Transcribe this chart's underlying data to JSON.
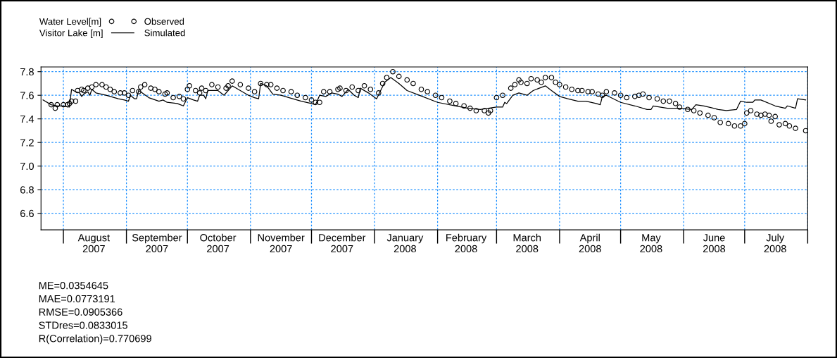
{
  "chart_data": {
    "type": "line",
    "legend_title": "Water Level[m]\nVisitor Lake [m]",
    "legend": "top left",
    "grid": true,
    "xlim": [
      "2007-07-21",
      "2008-08-01"
    ],
    "ylim": [
      6.46,
      7.84
    ],
    "yticks": [
      {
        "value": 6.6,
        "label": "6.6"
      },
      {
        "value": 6.8,
        "label": "6.8"
      },
      {
        "value": 7.0,
        "label": "7.0"
      },
      {
        "value": 7.2,
        "label": "7.2"
      },
      {
        "value": 7.4,
        "label": "7.4"
      },
      {
        "value": 7.6,
        "label": "7.6"
      },
      {
        "value": 7.8,
        "label": "7.8"
      }
    ],
    "xticks": [
      {
        "value": "2007-08-01",
        "label": null
      },
      {
        "value": "2007-08-16",
        "label": "August\n2007"
      },
      {
        "value": "2007-09-01",
        "label": null
      },
      {
        "value": "2007-09-16",
        "label": "September\n2007"
      },
      {
        "value": "2007-10-01",
        "label": null
      },
      {
        "value": "2007-10-16",
        "label": "October\n2007"
      },
      {
        "value": "2007-11-01",
        "label": null
      },
      {
        "value": "2007-11-16",
        "label": "November\n2007"
      },
      {
        "value": "2007-12-01",
        "label": null
      },
      {
        "value": "2007-12-16",
        "label": "December\n2007"
      },
      {
        "value": "2008-01-01",
        "label": null
      },
      {
        "value": "2008-01-16",
        "label": "January\n2008"
      },
      {
        "value": "2008-02-01",
        "label": null
      },
      {
        "value": "2008-02-15",
        "label": "February\n2008"
      },
      {
        "value": "2008-03-01",
        "label": null
      },
      {
        "value": "2008-03-16",
        "label": "March\n2008"
      },
      {
        "value": "2008-04-01",
        "label": null
      },
      {
        "value": "2008-04-16",
        "label": "April\n2008"
      },
      {
        "value": "2008-05-01",
        "label": null
      },
      {
        "value": "2008-05-16",
        "label": "May\n2008"
      },
      {
        "value": "2008-06-01",
        "label": null
      },
      {
        "value": "2008-06-16",
        "label": "June\n2008"
      },
      {
        "value": "2008-07-01",
        "label": null
      },
      {
        "value": "2008-07-16",
        "label": "July\n2008"
      },
      {
        "value": "2008-08-01",
        "label": null
      }
    ],
    "annotations": [
      "ME=0.0354645",
      "MAE=0.0773191",
      "RMSE=0.0905366",
      "STDres=0.0833015",
      "R(Correlation)=0.770699"
    ],
    "series": [
      {
        "name": "Observed",
        "type": "scatter",
        "marker": "circle",
        "color": "#000000",
        "x": [
          "2007-07-26",
          "2007-07-28",
          "2007-07-29",
          "2007-08-01",
          "2007-08-03",
          "2007-08-04",
          "2007-08-05",
          "2007-08-07",
          "2007-08-08",
          "2007-08-10",
          "2007-08-11",
          "2007-08-13",
          "2007-08-15",
          "2007-08-17",
          "2007-08-20",
          "2007-08-22",
          "2007-08-24",
          "2007-08-26",
          "2007-08-29",
          "2007-08-31",
          "2007-09-02",
          "2007-09-04",
          "2007-09-07",
          "2007-09-08",
          "2007-09-10",
          "2007-09-13",
          "2007-09-15",
          "2007-09-17",
          "2007-09-20",
          "2007-09-21",
          "2007-09-24",
          "2007-09-27",
          "2007-09-29",
          "2007-10-01",
          "2007-10-02",
          "2007-10-05",
          "2007-10-07",
          "2007-10-08",
          "2007-10-10",
          "2007-10-13",
          "2007-10-16",
          "2007-10-20",
          "2007-10-21",
          "2007-10-23",
          "2007-10-27",
          "2007-10-31",
          "2007-11-03",
          "2007-11-06",
          "2007-11-09",
          "2007-11-11",
          "2007-11-14",
          "2007-11-17",
          "2007-11-21",
          "2007-11-24",
          "2007-11-28",
          "2007-12-01",
          "2007-12-03",
          "2007-12-05",
          "2007-12-07",
          "2007-12-10",
          "2007-12-14",
          "2007-12-15",
          "2007-12-18",
          "2007-12-21",
          "2007-12-24",
          "2007-12-27",
          "2007-12-30",
          "2008-01-03",
          "2008-01-05",
          "2008-01-07",
          "2008-01-10",
          "2008-01-13",
          "2008-01-17",
          "2008-01-20",
          "2008-01-24",
          "2008-01-27",
          "2008-01-31",
          "2008-02-03",
          "2008-02-07",
          "2008-02-10",
          "2008-02-14",
          "2008-02-17",
          "2008-02-20",
          "2008-02-24",
          "2008-02-26",
          "2008-02-27",
          "2008-03-01",
          "2008-03-04",
          "2008-03-08",
          "2008-03-10",
          "2008-03-12",
          "2008-03-13",
          "2008-03-16",
          "2008-03-18",
          "2008-03-21",
          "2008-03-23",
          "2008-03-25",
          "2008-03-28",
          "2008-03-30",
          "2008-04-01",
          "2008-04-04",
          "2008-04-07",
          "2008-04-10",
          "2008-04-12",
          "2008-04-15",
          "2008-04-17",
          "2008-04-20",
          "2008-04-22",
          "2008-04-24",
          "2008-04-28",
          "2008-05-01",
          "2008-05-04",
          "2008-05-08",
          "2008-05-10",
          "2008-05-12",
          "2008-05-15",
          "2008-05-19",
          "2008-05-22",
          "2008-05-25",
          "2008-05-28",
          "2008-05-30",
          "2008-06-03",
          "2008-06-06",
          "2008-06-09",
          "2008-06-13",
          "2008-06-16",
          "2008-06-19",
          "2008-06-23",
          "2008-06-26",
          "2008-06-29",
          "2008-07-01",
          "2008-07-02",
          "2008-07-04",
          "2008-07-07",
          "2008-07-09",
          "2008-07-11",
          "2008-07-13",
          "2008-07-14",
          "2008-07-16",
          "2008-07-18",
          "2008-07-21",
          "2008-07-23",
          "2008-07-26",
          "2008-07-31"
        ],
        "values": [
          7.52,
          7.49,
          7.52,
          7.52,
          7.52,
          7.53,
          7.55,
          7.55,
          7.64,
          7.65,
          7.64,
          7.66,
          7.67,
          7.69,
          7.69,
          7.67,
          7.65,
          7.63,
          7.62,
          7.62,
          7.6,
          7.64,
          7.63,
          7.67,
          7.69,
          7.66,
          7.65,
          7.63,
          7.61,
          7.62,
          7.58,
          7.59,
          7.57,
          7.65,
          7.68,
          7.64,
          7.62,
          7.66,
          7.64,
          7.69,
          7.67,
          7.66,
          7.68,
          7.72,
          7.69,
          7.66,
          7.63,
          7.7,
          7.69,
          7.69,
          7.66,
          7.64,
          7.63,
          7.6,
          7.58,
          7.56,
          7.54,
          7.54,
          7.63,
          7.63,
          7.65,
          7.66,
          7.64,
          7.67,
          7.64,
          7.68,
          7.65,
          7.62,
          7.7,
          7.75,
          7.8,
          7.76,
          7.73,
          7.7,
          7.65,
          7.63,
          7.6,
          7.58,
          7.55,
          7.53,
          7.51,
          7.49,
          7.47,
          7.47,
          7.45,
          7.47,
          7.58,
          7.6,
          7.66,
          7.69,
          7.73,
          7.71,
          7.7,
          7.74,
          7.73,
          7.71,
          7.75,
          7.75,
          7.71,
          7.69,
          7.67,
          7.65,
          7.64,
          7.64,
          7.63,
          7.63,
          7.61,
          7.6,
          7.63,
          7.62,
          7.6,
          7.58,
          7.59,
          7.6,
          7.61,
          7.58,
          7.57,
          7.55,
          7.55,
          7.53,
          7.5,
          7.48,
          7.47,
          7.45,
          7.43,
          7.41,
          7.37,
          7.36,
          7.34,
          7.34,
          7.36,
          7.45,
          7.47,
          7.44,
          7.43,
          7.44,
          7.43,
          7.38,
          7.42,
          7.35,
          7.36,
          7.34,
          7.32,
          7.3
        ]
      },
      {
        "name": "Simulated",
        "marker": "none",
        "line_style": "solid",
        "color": "#000000",
        "x": [
          "2007-07-22",
          "2007-07-26",
          "2007-07-29",
          "2007-08-01",
          "2007-08-04",
          "2007-08-05",
          "2007-08-07",
          "2007-08-09",
          "2007-08-10",
          "2007-08-11",
          "2007-08-13",
          "2007-08-14",
          "2007-08-15",
          "2007-08-17",
          "2007-08-22",
          "2007-08-28",
          "2007-08-31",
          "2007-09-02",
          "2007-09-03",
          "2007-09-05",
          "2007-09-06",
          "2007-09-07",
          "2007-09-08",
          "2007-09-12",
          "2007-09-17",
          "2007-09-19",
          "2007-09-21",
          "2007-09-26",
          "2007-09-29",
          "2007-10-01",
          "2007-10-04",
          "2007-10-06",
          "2007-10-07",
          "2007-10-09",
          "2007-10-10",
          "2007-10-11",
          "2007-10-16",
          "2007-10-19",
          "2007-10-21",
          "2007-10-23",
          "2007-10-27",
          "2007-10-31",
          "2007-11-03",
          "2007-11-05",
          "2007-11-06",
          "2007-11-09",
          "2007-11-12",
          "2007-11-16",
          "2007-11-20",
          "2007-11-26",
          "2007-12-01",
          "2007-12-03",
          "2007-12-05",
          "2007-12-08",
          "2007-12-11",
          "2007-12-14",
          "2007-12-16",
          "2007-12-19",
          "2007-12-22",
          "2007-12-24",
          "2007-12-25",
          "2007-12-29",
          "2008-01-02",
          "2008-01-04",
          "2008-01-06",
          "2008-01-09",
          "2008-01-13",
          "2008-01-17",
          "2008-01-23",
          "2008-02-01",
          "2008-02-10",
          "2008-02-16",
          "2008-02-22",
          "2008-02-26",
          "2008-03-01",
          "2008-03-04",
          "2008-03-05",
          "2008-03-06",
          "2008-03-09",
          "2008-03-12",
          "2008-03-16",
          "2008-03-19",
          "2008-03-22",
          "2008-03-25",
          "2008-03-28",
          "2008-04-01",
          "2008-04-05",
          "2008-04-10",
          "2008-04-14",
          "2008-04-19",
          "2008-04-21",
          "2008-04-22",
          "2008-04-24",
          "2008-05-01",
          "2008-05-08",
          "2008-05-14",
          "2008-05-16",
          "2008-05-17",
          "2008-05-24",
          "2008-05-30",
          "2008-06-05",
          "2008-06-07",
          "2008-06-11",
          "2008-06-18",
          "2008-06-22",
          "2008-06-27",
          "2008-06-29",
          "2008-07-02",
          "2008-07-05",
          "2008-07-06",
          "2008-07-09",
          "2008-07-16",
          "2008-07-21",
          "2008-07-22",
          "2008-07-26",
          "2008-07-27",
          "2008-07-31"
        ],
        "values": [
          7.56,
          7.52,
          7.51,
          7.51,
          7.5,
          7.65,
          7.63,
          7.62,
          7.59,
          7.61,
          7.63,
          7.6,
          7.65,
          7.62,
          7.6,
          7.57,
          7.56,
          7.55,
          7.6,
          7.57,
          7.57,
          7.64,
          7.63,
          7.58,
          7.55,
          7.56,
          7.54,
          7.53,
          7.51,
          7.58,
          7.56,
          7.55,
          7.6,
          7.6,
          7.57,
          7.64,
          7.64,
          7.6,
          7.64,
          7.68,
          7.64,
          7.6,
          7.58,
          7.57,
          7.7,
          7.68,
          7.61,
          7.6,
          7.58,
          7.55,
          7.53,
          7.52,
          7.6,
          7.59,
          7.62,
          7.61,
          7.59,
          7.65,
          7.6,
          7.58,
          7.66,
          7.62,
          7.57,
          7.64,
          7.71,
          7.75,
          7.7,
          7.64,
          7.6,
          7.54,
          7.51,
          7.49,
          7.48,
          7.49,
          7.5,
          7.5,
          7.54,
          7.53,
          7.6,
          7.62,
          7.6,
          7.64,
          7.66,
          7.68,
          7.64,
          7.59,
          7.57,
          7.55,
          7.55,
          7.53,
          7.52,
          7.59,
          7.6,
          7.54,
          7.51,
          7.48,
          7.48,
          7.51,
          7.49,
          7.49,
          7.48,
          7.52,
          7.51,
          7.48,
          7.47,
          7.48,
          7.55,
          7.54,
          7.54,
          7.56,
          7.56,
          7.51,
          7.49,
          7.51,
          7.49,
          7.57,
          7.56
        ]
      }
    ]
  }
}
